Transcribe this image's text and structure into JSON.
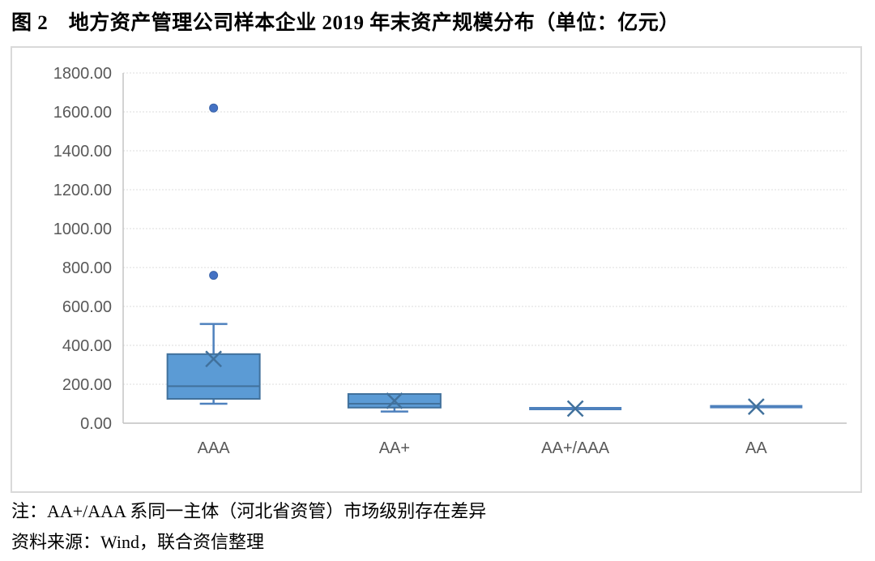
{
  "title": "图 2　地方资产管理公司样本企业 2019 年末资产规模分布（单位：亿元）",
  "notes": {
    "note1": "注：AA+/AAA 系同一主体（河北省资管）市场级别存在差异",
    "source": "资料来源：Wind，联合资信整理"
  },
  "chart_data": {
    "type": "boxplot",
    "title": "图 2　地方资产管理公司样本企业 2019 年末资产规模分布",
    "unit_label": "亿元",
    "categories": [
      "AAA",
      "AA+",
      "AA+/AAA",
      "AA"
    ],
    "ylim": [
      0,
      1800
    ],
    "ytick_step": 200,
    "ytick_labels": [
      "0.00",
      "200.00",
      "400.00",
      "600.00",
      "800.00",
      "1000.00",
      "1200.00",
      "1400.00",
      "1600.00",
      "1800.00"
    ],
    "grid": true,
    "legend": "none",
    "series": [
      {
        "category": "AAA",
        "min": 100,
        "q1": 125,
        "median": 190,
        "q3": 355,
        "max": 510,
        "mean": 330,
        "outliers": [
          760,
          1620
        ]
      },
      {
        "category": "AA+",
        "min": 60,
        "q1": 80,
        "median": 100,
        "q3": 150,
        "max": 150,
        "mean": 115,
        "outliers": []
      },
      {
        "category": "AA+/AAA",
        "min": 75,
        "q1": 75,
        "median": 75,
        "q3": 75,
        "max": 75,
        "mean": 75,
        "outliers": []
      },
      {
        "category": "AA",
        "min": 85,
        "q1": 85,
        "median": 85,
        "q3": 85,
        "max": 85,
        "mean": 85,
        "outliers": []
      }
    ],
    "colors": {
      "box_fill": "#5B9BD5",
      "box_stroke": "#41719C",
      "whisker": "#4E81BD",
      "mean": "#41719C",
      "outlier": "#4472C4",
      "outlier_stroke": "#3A63A8",
      "grid": "#DCDCDC",
      "axis": "#C0C0C0",
      "tick_text": "#595959"
    }
  }
}
